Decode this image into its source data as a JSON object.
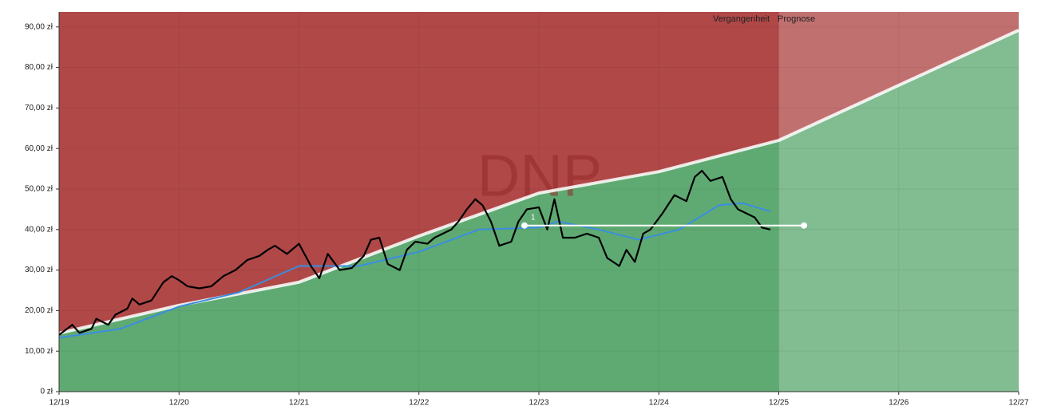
{
  "chart_data": {
    "type": "line",
    "watermark": "DNP",
    "past_label": "Vergangenheit",
    "forecast_label": "Prognose",
    "forecast_start": 6,
    "xlim": [
      0,
      8
    ],
    "xticks": [
      {
        "value": 0,
        "label": "12/19"
      },
      {
        "value": 1,
        "label": "12/20"
      },
      {
        "value": 2,
        "label": "12/21"
      },
      {
        "value": 3,
        "label": "12/22"
      },
      {
        "value": 4,
        "label": "12/23"
      },
      {
        "value": 5,
        "label": "12/24"
      },
      {
        "value": 6,
        "label": "12/25"
      },
      {
        "value": 7,
        "label": "12/26"
      },
      {
        "value": 8,
        "label": "12/27"
      }
    ],
    "ylim": [
      0,
      93.7
    ],
    "yticks": [
      {
        "value": 0,
        "label": "0 zł"
      },
      {
        "value": 10,
        "label": "10,00 zł"
      },
      {
        "value": 20,
        "label": "20,00 zł"
      },
      {
        "value": 30,
        "label": "30,00 zł"
      },
      {
        "value": 40,
        "label": "40,00 zł"
      },
      {
        "value": 50,
        "label": "50,00 zł"
      },
      {
        "value": 60,
        "label": "60,00 zł"
      },
      {
        "value": 70,
        "label": "70,00 zł"
      },
      {
        "value": 80,
        "label": "80,00 zł"
      },
      {
        "value": 90,
        "label": "90,00 zł"
      }
    ],
    "grid": true,
    "above_color": "#b04848",
    "below_color": "#5faa72",
    "fair_value": {
      "color": "#ffffff",
      "x": [
        0,
        1,
        2,
        3,
        4,
        5,
        6,
        8
      ],
      "values": [
        14.4,
        21.3,
        27,
        38.4,
        49,
        54.3,
        62,
        89.2
      ]
    },
    "moving_average": {
      "color": "#3a8ee0",
      "x": [
        0,
        0.51,
        1.0,
        1.5,
        2.0,
        2.5,
        3.0,
        3.5,
        4.0,
        4.16,
        4.5,
        4.83,
        5.17,
        5.5,
        5.7,
        5.93
      ],
      "values": [
        13.3,
        15.5,
        21,
        24.5,
        31,
        31,
        34.5,
        40,
        40.5,
        42,
        40,
        37.5,
        40,
        46,
        46.5,
        44.5
      ]
    },
    "price": {
      "color": "#000000",
      "x": [
        0,
        0.11,
        0.17,
        0.27,
        0.31,
        0.41,
        0.47,
        0.57,
        0.61,
        0.67,
        0.77,
        0.87,
        0.94,
        1.0,
        1.07,
        1.17,
        1.27,
        1.37,
        1.47,
        1.57,
        1.67,
        1.74,
        1.8,
        1.9,
        2.0,
        2.1,
        2.17,
        2.24,
        2.34,
        2.44,
        2.54,
        2.6,
        2.67,
        2.74,
        2.84,
        2.9,
        2.97,
        3.07,
        3.13,
        3.2,
        3.27,
        3.33,
        3.4,
        3.47,
        3.53,
        3.6,
        3.67,
        3.77,
        3.83,
        3.9,
        4.0,
        4.07,
        4.13,
        4.2,
        4.3,
        4.4,
        4.5,
        4.57,
        4.67,
        4.73,
        4.8,
        4.87,
        4.93,
        5.03,
        5.13,
        5.23,
        5.3,
        5.36,
        5.43,
        5.53,
        5.6,
        5.66,
        5.73,
        5.8,
        5.86,
        5.93
      ],
      "values": [
        14,
        16.5,
        14.5,
        15.5,
        18,
        16.5,
        19,
        20.5,
        23,
        21.5,
        22.5,
        27,
        28.5,
        27.5,
        26,
        25.5,
        26,
        28.5,
        30,
        32.5,
        33.5,
        35,
        36,
        34,
        36.5,
        31,
        28,
        34,
        30,
        30.5,
        33.5,
        37.5,
        38,
        31.5,
        30,
        35,
        37,
        36.5,
        38,
        39,
        40,
        42,
        45,
        47.5,
        46,
        42,
        36,
        37,
        42,
        45,
        45.5,
        40,
        47.5,
        38,
        38,
        39,
        38,
        33,
        31,
        35,
        32,
        39,
        40,
        44,
        48.5,
        47,
        53,
        54.5,
        52,
        53,
        47.5,
        45,
        44,
        43,
        40.5,
        40
      ]
    },
    "target": {
      "color": "#ffffff",
      "label": "1",
      "x": [
        3.88,
        6.21
      ],
      "values": [
        41,
        41
      ]
    }
  }
}
